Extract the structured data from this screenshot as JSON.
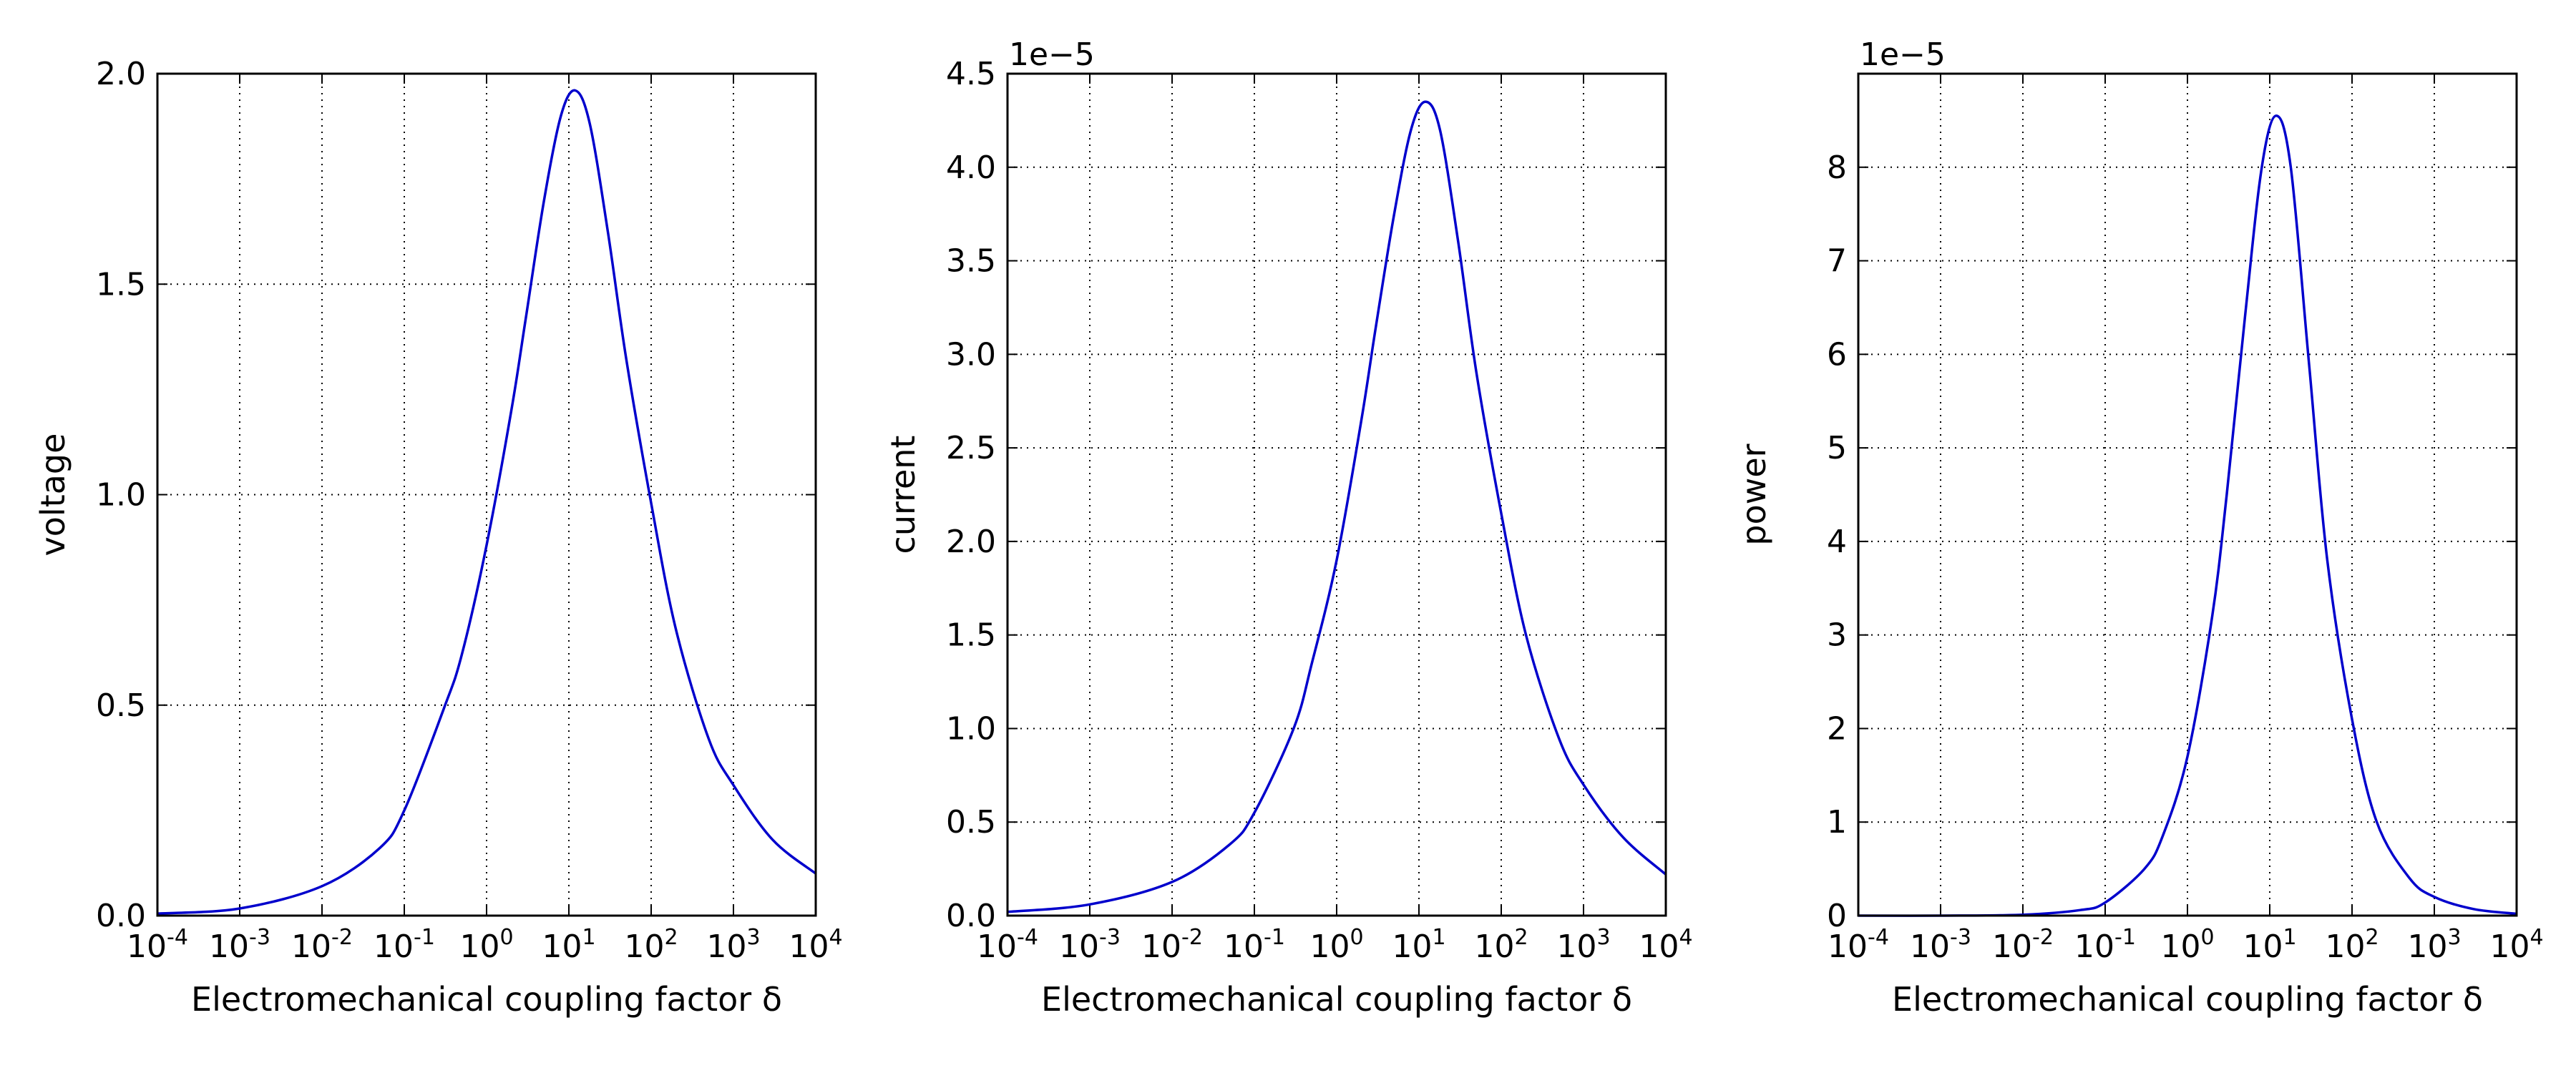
{
  "chart_data": [
    {
      "type": "line",
      "xlabel": "Electromechanical coupling factor δ",
      "ylabel": "voltage",
      "offset_label": "",
      "xscale": "log",
      "xlim": [
        0.0001,
        10000
      ],
      "ylim": [
        0,
        2.0
      ],
      "grid": true,
      "x_ticks": [
        {
          "base": "10",
          "exp": "-4"
        },
        {
          "base": "10",
          "exp": "-3"
        },
        {
          "base": "10",
          "exp": "-2"
        },
        {
          "base": "10",
          "exp": "-1"
        },
        {
          "base": "10",
          "exp": "0"
        },
        {
          "base": "10",
          "exp": "1"
        },
        {
          "base": "10",
          "exp": "2"
        },
        {
          "base": "10",
          "exp": "3"
        },
        {
          "base": "10",
          "exp": "4"
        }
      ],
      "y_ticks": [
        {
          "value": 0,
          "label": "0.0"
        },
        {
          "value": 0.5,
          "label": "0.5"
        },
        {
          "value": 1.0,
          "label": "1.0"
        },
        {
          "value": 1.5,
          "label": "1.5"
        },
        {
          "value": 2.0,
          "label": "2.0"
        }
      ],
      "series": [
        {
          "color": "#0000cc",
          "points": [
            [
              0.0001,
              0.005
            ],
            [
              0.001,
              0.017
            ],
            [
              0.01,
              0.07
            ],
            [
              0.05,
              0.16
            ],
            [
              0.1,
              0.25
            ],
            [
              0.3,
              0.49
            ],
            [
              0.5,
              0.62
            ],
            [
              1,
              0.88
            ],
            [
              2,
              1.2
            ],
            [
              3,
              1.42
            ],
            [
              5,
              1.7
            ],
            [
              8,
              1.9
            ],
            [
              12,
              1.96
            ],
            [
              18,
              1.88
            ],
            [
              30,
              1.62
            ],
            [
              50,
              1.32
            ],
            [
              100,
              0.98
            ],
            [
              200,
              0.68
            ],
            [
              500,
              0.42
            ],
            [
              1000,
              0.31
            ],
            [
              3000,
              0.18
            ],
            [
              10000,
              0.1
            ]
          ]
        }
      ]
    },
    {
      "type": "line",
      "xlabel": "Electromechanical coupling factor δ",
      "ylabel": "current",
      "offset_label": "1e−5",
      "xscale": "log",
      "xlim": [
        0.0001,
        10000
      ],
      "ylim": [
        0,
        4.5
      ],
      "grid": true,
      "x_ticks": [
        {
          "base": "10",
          "exp": "-4"
        },
        {
          "base": "10",
          "exp": "-3"
        },
        {
          "base": "10",
          "exp": "-2"
        },
        {
          "base": "10",
          "exp": "-1"
        },
        {
          "base": "10",
          "exp": "0"
        },
        {
          "base": "10",
          "exp": "1"
        },
        {
          "base": "10",
          "exp": "2"
        },
        {
          "base": "10",
          "exp": "3"
        },
        {
          "base": "10",
          "exp": "4"
        }
      ],
      "y_ticks": [
        {
          "value": 0,
          "label": "0.0"
        },
        {
          "value": 0.5,
          "label": "0.5"
        },
        {
          "value": 1.0,
          "label": "1.0"
        },
        {
          "value": 1.5,
          "label": "1.5"
        },
        {
          "value": 2.0,
          "label": "2.0"
        },
        {
          "value": 2.5,
          "label": "2.5"
        },
        {
          "value": 3.0,
          "label": "3.0"
        },
        {
          "value": 3.5,
          "label": "3.5"
        },
        {
          "value": 4.0,
          "label": "4.0"
        },
        {
          "value": 4.5,
          "label": "4.5"
        }
      ],
      "series": [
        {
          "color": "#0000cc",
          "points": [
            [
              0.0001,
              0.02
            ],
            [
              0.001,
              0.06
            ],
            [
              0.01,
              0.18
            ],
            [
              0.05,
              0.38
            ],
            [
              0.1,
              0.55
            ],
            [
              0.3,
              1.0
            ],
            [
              0.5,
              1.35
            ],
            [
              1,
              1.9
            ],
            [
              2,
              2.65
            ],
            [
              3,
              3.15
            ],
            [
              5,
              3.75
            ],
            [
              8,
              4.2
            ],
            [
              12,
              4.35
            ],
            [
              18,
              4.2
            ],
            [
              30,
              3.6
            ],
            [
              50,
              2.9
            ],
            [
              100,
              2.15
            ],
            [
              200,
              1.5
            ],
            [
              500,
              0.95
            ],
            [
              1000,
              0.7
            ],
            [
              3000,
              0.42
            ],
            [
              10000,
              0.22
            ]
          ]
        }
      ]
    },
    {
      "type": "line",
      "xlabel": "Electromechanical coupling factor δ",
      "ylabel": "power",
      "offset_label": "1e−5",
      "xscale": "log",
      "xlim": [
        0.0001,
        10000
      ],
      "ylim": [
        0,
        9
      ],
      "grid": true,
      "x_ticks": [
        {
          "base": "10",
          "exp": "-4"
        },
        {
          "base": "10",
          "exp": "-3"
        },
        {
          "base": "10",
          "exp": "-2"
        },
        {
          "base": "10",
          "exp": "-1"
        },
        {
          "base": "10",
          "exp": "0"
        },
        {
          "base": "10",
          "exp": "1"
        },
        {
          "base": "10",
          "exp": "2"
        },
        {
          "base": "10",
          "exp": "3"
        },
        {
          "base": "10",
          "exp": "4"
        }
      ],
      "y_ticks": [
        {
          "value": 0,
          "label": "0"
        },
        {
          "value": 1,
          "label": "1"
        },
        {
          "value": 2,
          "label": "2"
        },
        {
          "value": 3,
          "label": "3"
        },
        {
          "value": 4,
          "label": "4"
        },
        {
          "value": 5,
          "label": "5"
        },
        {
          "value": 6,
          "label": "6"
        },
        {
          "value": 7,
          "label": "7"
        },
        {
          "value": 8,
          "label": "8"
        }
      ],
      "series": [
        {
          "color": "#0000cc",
          "points": [
            [
              0.0001,
              0.0
            ],
            [
              0.001,
              0.0
            ],
            [
              0.01,
              0.01
            ],
            [
              0.05,
              0.06
            ],
            [
              0.1,
              0.14
            ],
            [
              0.3,
              0.5
            ],
            [
              0.5,
              0.85
            ],
            [
              1,
              1.7
            ],
            [
              2,
              3.2
            ],
            [
              3,
              4.5
            ],
            [
              5,
              6.4
            ],
            [
              8,
              8.0
            ],
            [
              12,
              8.55
            ],
            [
              18,
              8.0
            ],
            [
              30,
              5.9
            ],
            [
              50,
              3.8
            ],
            [
              100,
              2.1
            ],
            [
              200,
              1.0
            ],
            [
              500,
              0.4
            ],
            [
              1000,
              0.2
            ],
            [
              3000,
              0.07
            ],
            [
              10000,
              0.02
            ]
          ]
        }
      ]
    }
  ]
}
